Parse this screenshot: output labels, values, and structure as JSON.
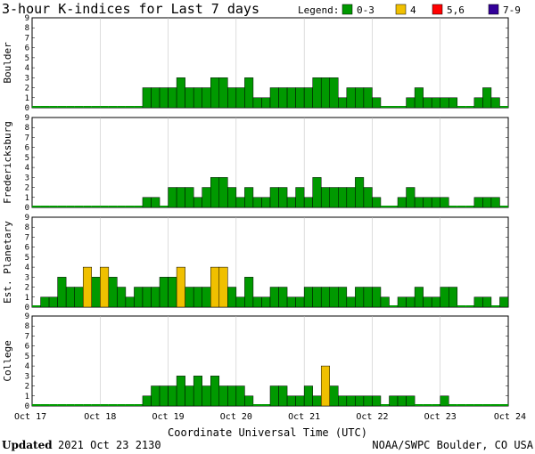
{
  "title": "3-hour K-indices for Last 7 days",
  "legend": {
    "label": "Legend:",
    "items": [
      {
        "name": "0-3",
        "color": "#009900"
      },
      {
        "name": "4",
        "color": "#f0c000"
      },
      {
        "name": "5,6",
        "color": "#ff0000"
      },
      {
        "name": "7-9",
        "color": "#330099"
      }
    ]
  },
  "footer": {
    "updated_label": "Updated",
    "updated_value": "2021 Oct 23 2130",
    "credit": "NOAA/SWPC Boulder, CO USA"
  },
  "chart_data": {
    "type": "bar",
    "xlabel": "Coordinate Universal Time (UTC)",
    "x_ticks": [
      "Oct 17",
      "Oct 18",
      "Oct 19",
      "Oct 20",
      "Oct 21",
      "Oct 22",
      "Oct 23",
      "Oct 24"
    ],
    "y_ticks": [
      0,
      1,
      2,
      3,
      4,
      5,
      6,
      7,
      8,
      9
    ],
    "ylim": [
      0,
      9
    ],
    "bins_per_day": 8,
    "panels": [
      {
        "name": "Boulder",
        "values": [
          0,
          0,
          0,
          0,
          0,
          0,
          0,
          0,
          0,
          0,
          0,
          0,
          0,
          2,
          2,
          2,
          2,
          3,
          2,
          2,
          2,
          3,
          3,
          2,
          2,
          3,
          1,
          1,
          2,
          2,
          2,
          2,
          2,
          3,
          3,
          3,
          1,
          2,
          2,
          2,
          1,
          0,
          0,
          0,
          1,
          2,
          1,
          1,
          1,
          1,
          0,
          0,
          1,
          2,
          1,
          0
        ]
      },
      {
        "name": "Fredericksburg",
        "values": [
          0,
          0,
          0,
          0,
          0,
          0,
          0,
          0,
          0,
          0,
          0,
          0,
          0,
          1,
          1,
          0,
          2,
          2,
          2,
          1,
          2,
          3,
          3,
          2,
          1,
          2,
          1,
          1,
          2,
          2,
          1,
          2,
          1,
          3,
          2,
          2,
          2,
          2,
          3,
          2,
          1,
          0,
          0,
          1,
          2,
          1,
          1,
          1,
          1,
          0,
          0,
          0,
          1,
          1,
          1,
          0
        ]
      },
      {
        "name": "Est. Planetary",
        "values": [
          0,
          1,
          1,
          3,
          2,
          2,
          4,
          3,
          4,
          3,
          2,
          1,
          2,
          2,
          2,
          3,
          3,
          4,
          2,
          2,
          2,
          4,
          4,
          2,
          1,
          3,
          1,
          1,
          2,
          2,
          1,
          1,
          2,
          2,
          2,
          2,
          2,
          1,
          2,
          2,
          2,
          1,
          0,
          1,
          1,
          2,
          1,
          1,
          2,
          2,
          0,
          0,
          1,
          1,
          0,
          1
        ]
      },
      {
        "name": "College",
        "values": [
          0,
          0,
          0,
          0,
          0,
          0,
          0,
          0,
          0,
          0,
          0,
          0,
          0,
          1,
          2,
          2,
          2,
          3,
          2,
          3,
          2,
          3,
          2,
          2,
          2,
          1,
          0,
          0,
          2,
          2,
          1,
          1,
          2,
          1,
          4,
          2,
          1,
          1,
          1,
          1,
          1,
          0,
          1,
          1,
          1,
          0,
          0,
          0,
          1,
          0,
          0,
          0,
          0,
          0,
          0,
          0
        ]
      }
    ]
  }
}
